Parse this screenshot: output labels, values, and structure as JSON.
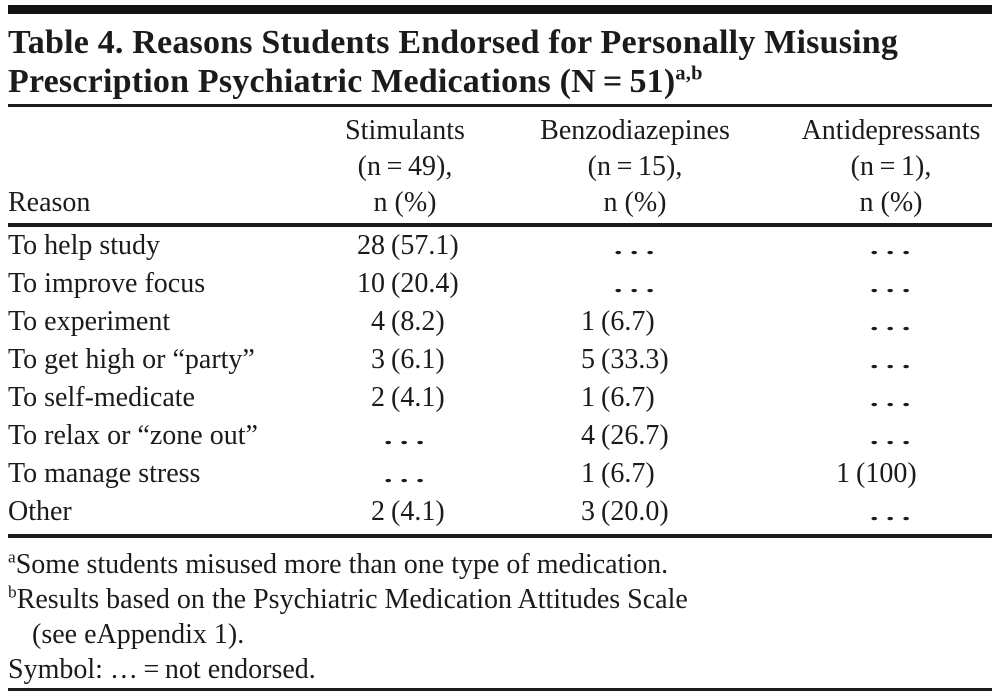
{
  "title": {
    "line1": "Table 4. Reasons Students Endorsed for Personally Misusing",
    "line2": "Prescription Psychiatric Medications (N = 51)",
    "superscript": "a,b"
  },
  "header": {
    "reason_label": "Reason",
    "groups": [
      {
        "name": "Stimulants",
        "n": "(n = 49),",
        "unit": "n (%)"
      },
      {
        "name": "Benzodiazepines",
        "n": "(n = 15),",
        "unit": "n (%)"
      },
      {
        "name": "Antidepressants",
        "n": "(n = 1),",
        "unit": "n (%)"
      }
    ]
  },
  "rows": [
    {
      "reason": "To help study",
      "stimulants": {
        "n": "28",
        "pct": "(57.1)"
      },
      "benzodiazepines": {
        "dots": "…"
      },
      "antidepressants": {
        "dots": "…"
      }
    },
    {
      "reason": "To improve focus",
      "stimulants": {
        "n": "10",
        "pct": "(20.4)"
      },
      "benzodiazepines": {
        "dots": "…"
      },
      "antidepressants": {
        "dots": "…"
      }
    },
    {
      "reason": "To experiment",
      "stimulants": {
        "n": "4",
        "pct": "(8.2)"
      },
      "benzodiazepines": {
        "n": "1",
        "pct": "(6.7)"
      },
      "antidepressants": {
        "dots": "…"
      }
    },
    {
      "reason": "To get high or “party”",
      "stimulants": {
        "n": "3",
        "pct": "(6.1)"
      },
      "benzodiazepines": {
        "n": "5",
        "pct": "(33.3)"
      },
      "antidepressants": {
        "dots": "…"
      }
    },
    {
      "reason": "To self-medicate",
      "stimulants": {
        "n": "2",
        "pct": "(4.1)"
      },
      "benzodiazepines": {
        "n": "1",
        "pct": "(6.7)"
      },
      "antidepressants": {
        "dots": "…"
      }
    },
    {
      "reason": "To relax or “zone out”",
      "stimulants": {
        "dots": "…"
      },
      "benzodiazepines": {
        "n": "4",
        "pct": "(26.7)"
      },
      "antidepressants": {
        "dots": "…"
      }
    },
    {
      "reason": "To manage stress",
      "stimulants": {
        "dots": "…"
      },
      "benzodiazepines": {
        "n": "1",
        "pct": "(6.7)"
      },
      "antidepressants": {
        "n": "1",
        "pct": "(100)"
      }
    },
    {
      "reason": "Other",
      "stimulants": {
        "n": "2",
        "pct": "(4.1)"
      },
      "benzodiazepines": {
        "n": "3",
        "pct": "(20.0)"
      },
      "antidepressants": {
        "dots": "…"
      }
    }
  ],
  "footnotes": {
    "a": {
      "sup": "a",
      "text": "Some students misused more than one type of medication."
    },
    "b": {
      "sup": "b",
      "text": "Results based on the Psychiatric Medication Attitudes Scale",
      "continuation": "(see eAppendix 1)."
    },
    "symbol": "Symbol: … = not endorsed."
  }
}
